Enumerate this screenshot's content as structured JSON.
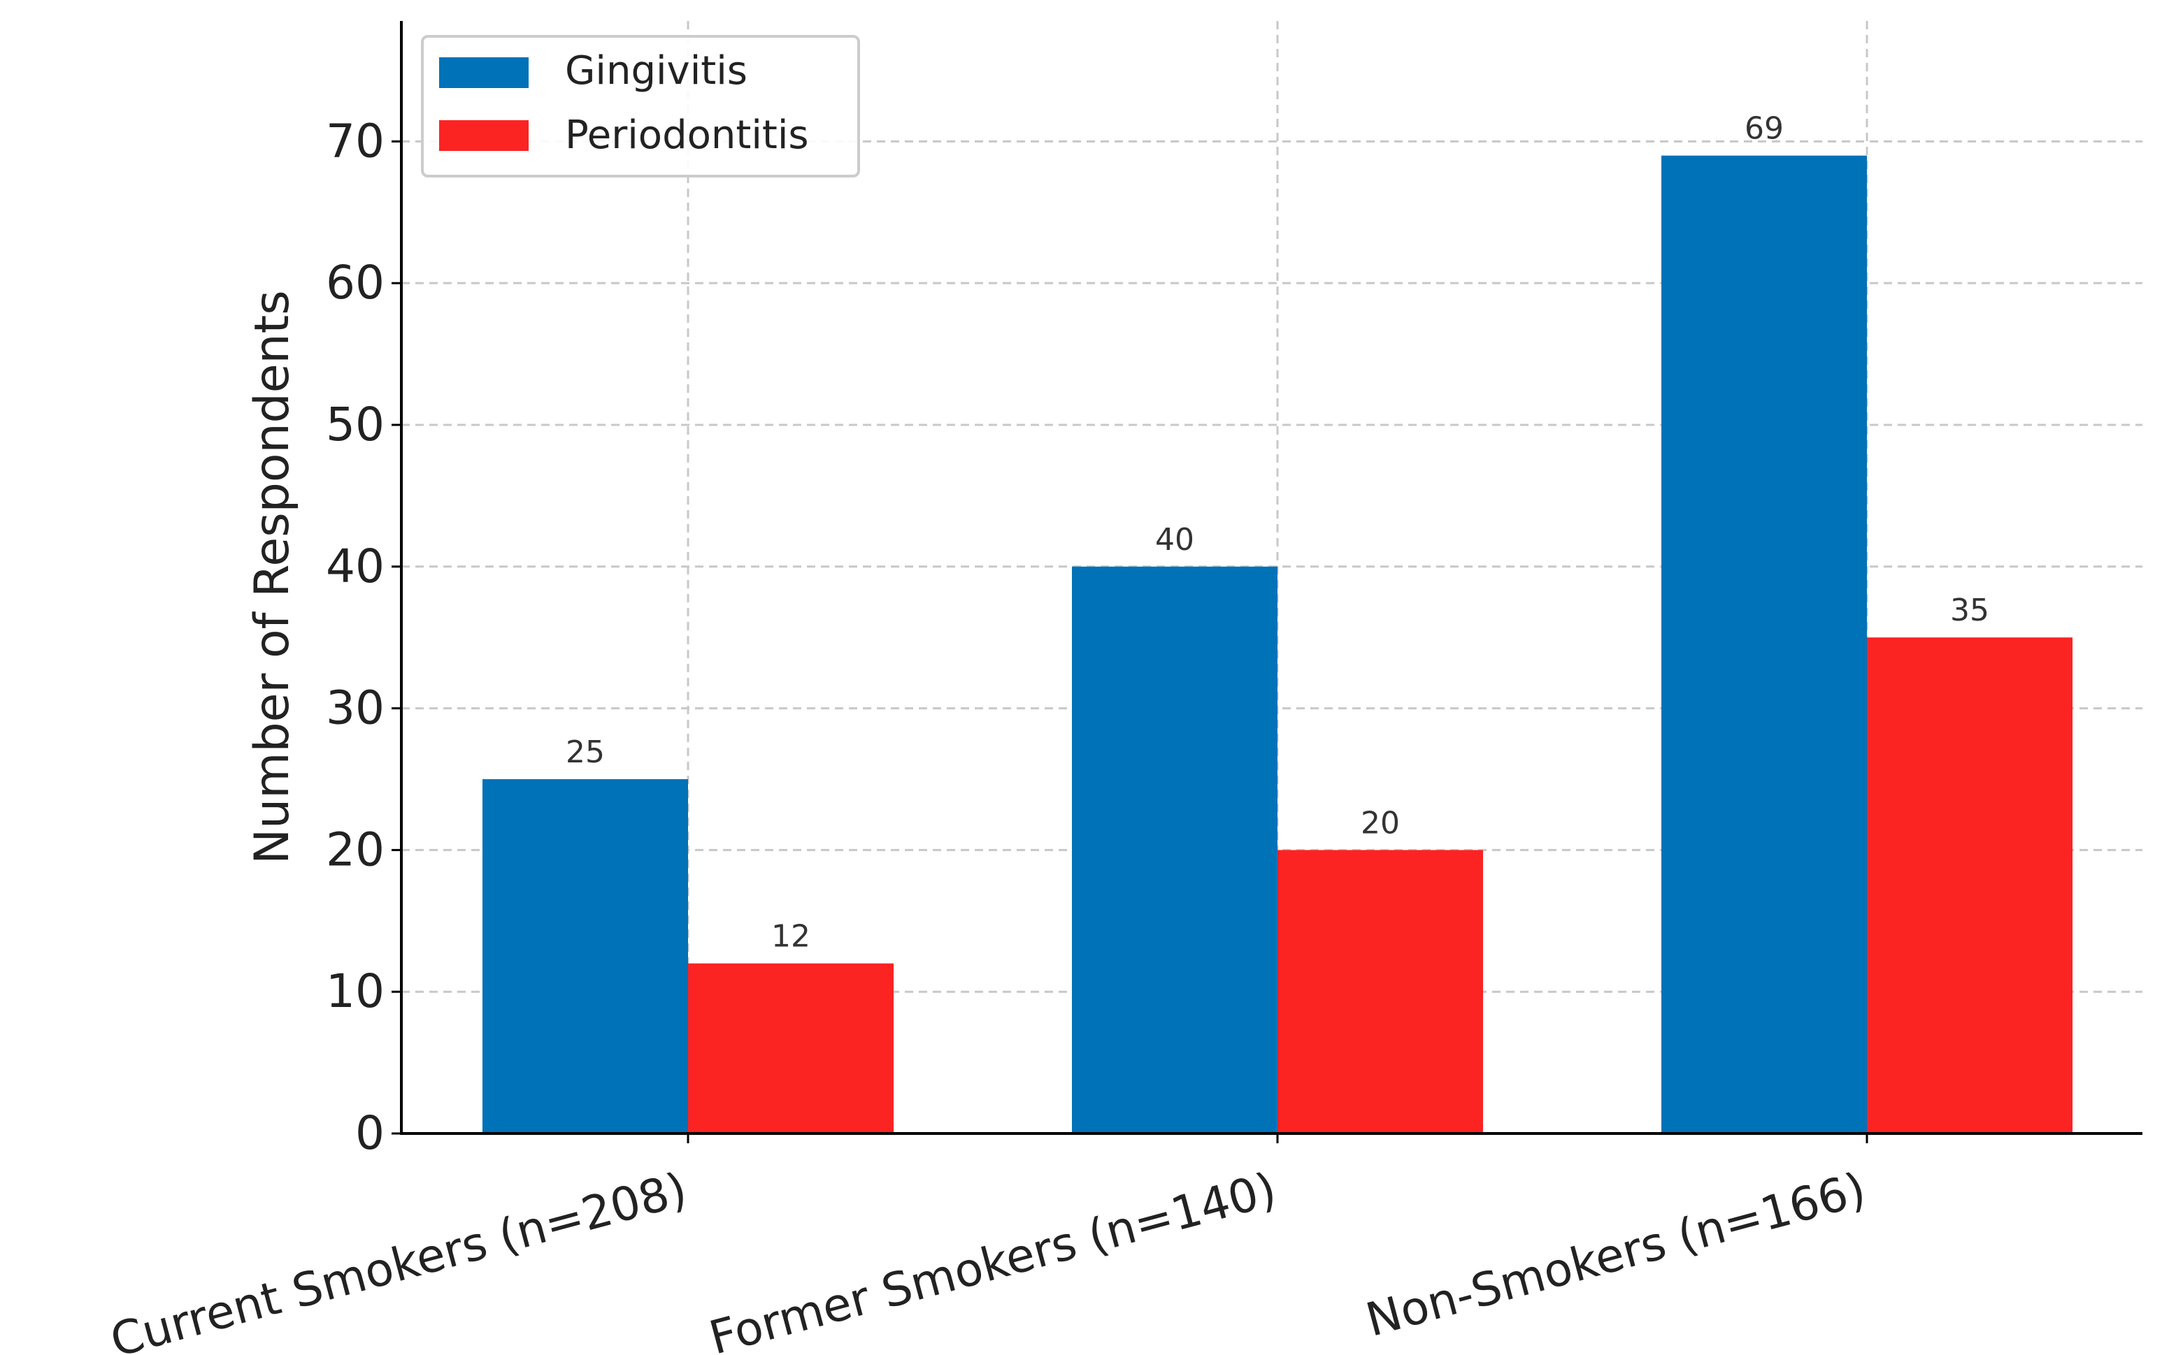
{
  "chart_data": {
    "type": "bar",
    "categories": [
      "Current Smokers (n=208)",
      "Former Smokers (n=140)",
      "Non-Smokers (n=166)"
    ],
    "series": [
      {
        "name": "Gingivitis",
        "values": [
          25,
          40,
          69
        ],
        "color": "#0072b8"
      },
      {
        "name": "Periodontitis",
        "values": [
          12,
          20,
          35
        ],
        "color": "#fc2323"
      }
    ],
    "title": "",
    "xlabel": "",
    "ylabel": "Number of Respondents",
    "ylim": [
      0,
      78.5
    ],
    "yticks": [
      0,
      10,
      20,
      30,
      40,
      50,
      60,
      70
    ],
    "grid": true,
    "legend_position": "top-left",
    "data_labels": true
  }
}
